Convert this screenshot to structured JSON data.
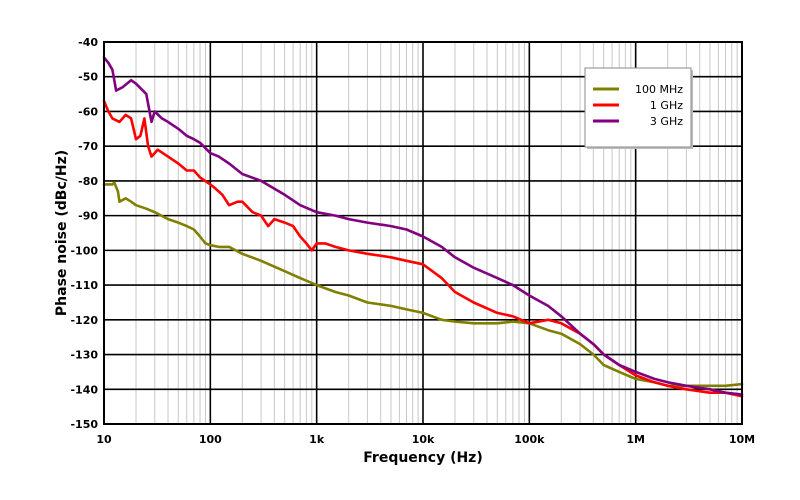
{
  "chart_data": {
    "type": "line",
    "title": "",
    "xlabel": "Frequency (Hz)",
    "ylabel": "Phase noise (dBc/Hz)",
    "x_scale": "log",
    "xlim": [
      10,
      10000000
    ],
    "ylim": [
      -150,
      -40
    ],
    "x_ticks": [
      10,
      100,
      1000,
      10000,
      100000,
      1000000,
      10000000
    ],
    "x_tick_labels": [
      "10",
      "100",
      "1k",
      "10k",
      "100k",
      "1M",
      "10M"
    ],
    "y_ticks": [
      -40,
      -50,
      -60,
      -70,
      -80,
      -90,
      -100,
      -110,
      -120,
      -130,
      -140,
      -150
    ],
    "y_tick_labels": [
      "-40",
      "-50",
      "-60",
      "-70",
      "-80",
      "-90",
      "-100",
      "-110",
      "-120",
      "-130",
      "-140",
      "-150"
    ],
    "grid": true,
    "legend_position": "top-right",
    "series": [
      {
        "name": "100 MHz",
        "color": "#808000",
        "points": [
          [
            10,
            -81
          ],
          [
            11,
            -81
          ],
          [
            12,
            -81
          ],
          [
            12.5,
            -80.5
          ],
          [
            13.5,
            -83
          ],
          [
            14,
            -86
          ],
          [
            16,
            -85
          ],
          [
            18,
            -86
          ],
          [
            20,
            -87
          ],
          [
            25,
            -88
          ],
          [
            30,
            -89
          ],
          [
            40,
            -91
          ],
          [
            50,
            -92
          ],
          [
            60,
            -93
          ],
          [
            70,
            -94
          ],
          [
            80,
            -96
          ],
          [
            90,
            -98
          ],
          [
            100,
            -98.5
          ],
          [
            120,
            -99
          ],
          [
            150,
            -99
          ],
          [
            200,
            -101
          ],
          [
            300,
            -103
          ],
          [
            500,
            -106
          ],
          [
            700,
            -108
          ],
          [
            1000,
            -110
          ],
          [
            1500,
            -112
          ],
          [
            2000,
            -113
          ],
          [
            3000,
            -115
          ],
          [
            5000,
            -116
          ],
          [
            7000,
            -117
          ],
          [
            10000,
            -118
          ],
          [
            15000,
            -120
          ],
          [
            20000,
            -120.5
          ],
          [
            30000,
            -121
          ],
          [
            50000,
            -121
          ],
          [
            70000,
            -120.5
          ],
          [
            100000,
            -121
          ],
          [
            150000,
            -123
          ],
          [
            200000,
            -124
          ],
          [
            300000,
            -127
          ],
          [
            400000,
            -130
          ],
          [
            500000,
            -133
          ],
          [
            700000,
            -135
          ],
          [
            1000000,
            -137
          ],
          [
            1500000,
            -138
          ],
          [
            2000000,
            -139
          ],
          [
            3000000,
            -139
          ],
          [
            5000000,
            -139
          ],
          [
            7000000,
            -139
          ],
          [
            10000000,
            -138.5
          ]
        ]
      },
      {
        "name": "1 GHz",
        "color": "#ff0000",
        "points": [
          [
            10,
            -57
          ],
          [
            11,
            -60
          ],
          [
            12,
            -62
          ],
          [
            14,
            -63
          ],
          [
            16,
            -61
          ],
          [
            18,
            -62
          ],
          [
            20,
            -68
          ],
          [
            22,
            -67
          ],
          [
            24,
            -62
          ],
          [
            26,
            -70
          ],
          [
            28,
            -73
          ],
          [
            32,
            -71
          ],
          [
            40,
            -73
          ],
          [
            50,
            -75
          ],
          [
            60,
            -77
          ],
          [
            70,
            -77
          ],
          [
            80,
            -79
          ],
          [
            100,
            -81
          ],
          [
            110,
            -82
          ],
          [
            130,
            -84
          ],
          [
            150,
            -87
          ],
          [
            180,
            -86
          ],
          [
            200,
            -86
          ],
          [
            250,
            -89
          ],
          [
            300,
            -90
          ],
          [
            350,
            -93
          ],
          [
            400,
            -91
          ],
          [
            500,
            -92
          ],
          [
            600,
            -93
          ],
          [
            700,
            -96
          ],
          [
            800,
            -98
          ],
          [
            900,
            -100
          ],
          [
            1000,
            -98
          ],
          [
            1200,
            -98
          ],
          [
            1500,
            -99
          ],
          [
            2000,
            -100
          ],
          [
            3000,
            -101
          ],
          [
            5000,
            -102
          ],
          [
            7000,
            -103
          ],
          [
            10000,
            -104
          ],
          [
            15000,
            -108
          ],
          [
            20000,
            -112
          ],
          [
            30000,
            -115
          ],
          [
            50000,
            -118
          ],
          [
            70000,
            -119
          ],
          [
            100000,
            -121
          ],
          [
            150000,
            -120
          ],
          [
            200000,
            -121
          ],
          [
            300000,
            -124
          ],
          [
            400000,
            -127
          ],
          [
            500000,
            -130
          ],
          [
            700000,
            -133
          ],
          [
            1000000,
            -136
          ],
          [
            1500000,
            -138
          ],
          [
            2000000,
            -139
          ],
          [
            3000000,
            -140
          ],
          [
            5000000,
            -141
          ],
          [
            7000000,
            -141
          ],
          [
            10000000,
            -142
          ]
        ]
      },
      {
        "name": "3 GHz",
        "color": "#800080",
        "points": [
          [
            10,
            -44.5
          ],
          [
            11,
            -46
          ],
          [
            12,
            -48
          ],
          [
            12.5,
            -51
          ],
          [
            13,
            -54
          ],
          [
            15,
            -53
          ],
          [
            18,
            -51
          ],
          [
            20,
            -52
          ],
          [
            25,
            -55
          ],
          [
            28,
            -63
          ],
          [
            30,
            -60
          ],
          [
            35,
            -62
          ],
          [
            40,
            -63
          ],
          [
            50,
            -65
          ],
          [
            60,
            -67
          ],
          [
            70,
            -68
          ],
          [
            80,
            -69
          ],
          [
            100,
            -72
          ],
          [
            120,
            -73
          ],
          [
            150,
            -75
          ],
          [
            200,
            -78
          ],
          [
            300,
            -80
          ],
          [
            500,
            -84
          ],
          [
            700,
            -87
          ],
          [
            1000,
            -89
          ],
          [
            1500,
            -90
          ],
          [
            2000,
            -91
          ],
          [
            3000,
            -92
          ],
          [
            5000,
            -93
          ],
          [
            7000,
            -94
          ],
          [
            10000,
            -96
          ],
          [
            15000,
            -99
          ],
          [
            20000,
            -102
          ],
          [
            30000,
            -105
          ],
          [
            50000,
            -108
          ],
          [
            70000,
            -110
          ],
          [
            100000,
            -113
          ],
          [
            150000,
            -116
          ],
          [
            200000,
            -119
          ],
          [
            300000,
            -124
          ],
          [
            400000,
            -127
          ],
          [
            500000,
            -130
          ],
          [
            700000,
            -133
          ],
          [
            1000000,
            -135
          ],
          [
            1500000,
            -137
          ],
          [
            2000000,
            -138
          ],
          [
            3000000,
            -139
          ],
          [
            5000000,
            -140
          ],
          [
            7000000,
            -141
          ],
          [
            10000000,
            -141.5
          ]
        ]
      }
    ]
  }
}
